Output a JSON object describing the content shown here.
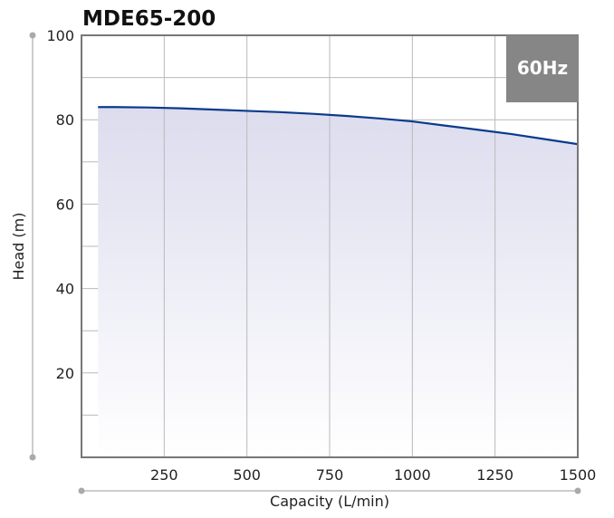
{
  "chart_data": {
    "type": "area",
    "title": "MDE65-200",
    "badge": "60Hz",
    "xlabel": "Capacity (L/min)",
    "ylabel": "Head (m)",
    "xlim": [
      0,
      1500
    ],
    "ylim": [
      0,
      100
    ],
    "xticks": [
      250,
      500,
      750,
      1000,
      1250,
      1500
    ],
    "yticks": [
      20,
      40,
      60,
      80,
      100
    ],
    "grid": true,
    "series": [
      {
        "x": [
          50,
          100,
          200,
          300,
          400,
          500,
          600,
          700,
          800,
          900,
          1000,
          1100,
          1200,
          1300,
          1400,
          1500
        ],
        "y": [
          83.0,
          83.0,
          82.9,
          82.7,
          82.4,
          82.1,
          81.8,
          81.4,
          80.9,
          80.3,
          79.6,
          78.6,
          77.6,
          76.6,
          75.4,
          74.2
        ]
      }
    ],
    "colors": {
      "line": "#0a3a8c",
      "fill_top": "#dcdcee",
      "grid": "#b9b9b9",
      "frame": "#777777",
      "badge_bg": "#868686"
    }
  }
}
